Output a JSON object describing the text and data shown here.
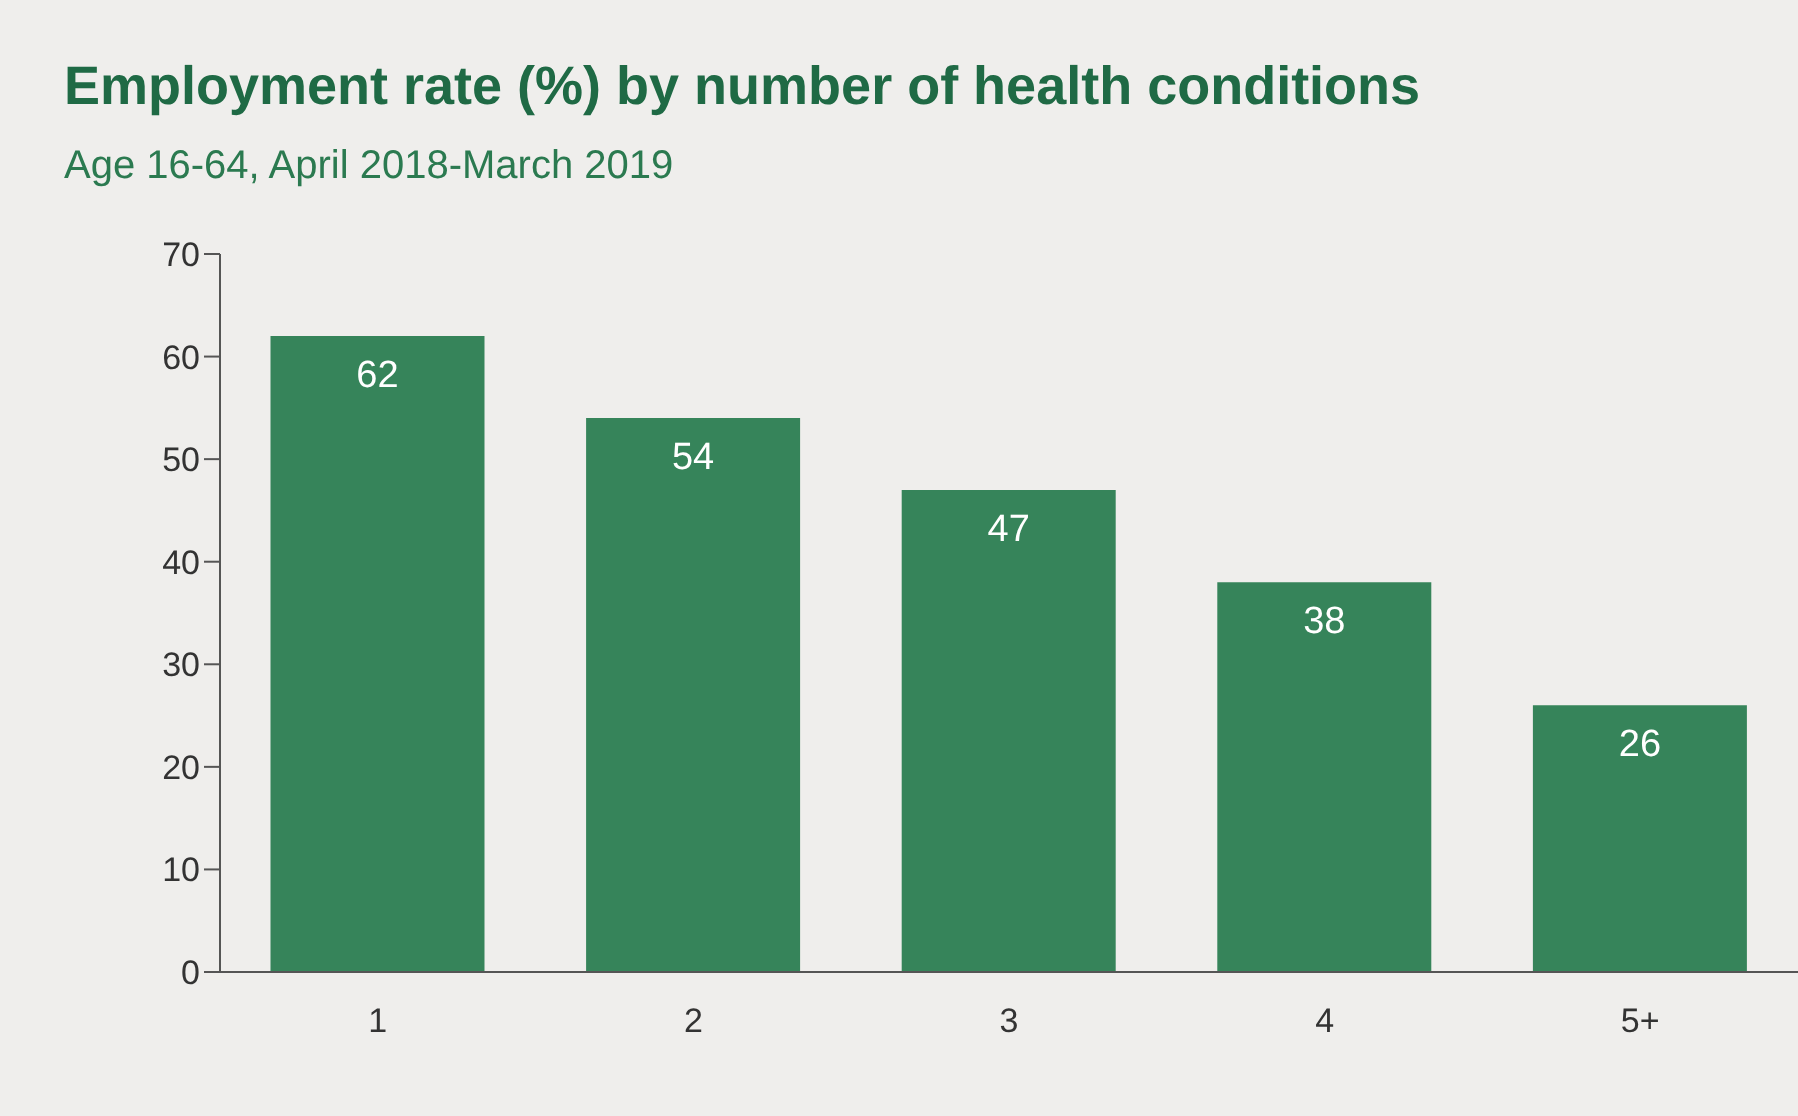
{
  "chart_data": {
    "type": "bar",
    "title": "Employment rate (%) by number of health conditions",
    "subtitle": "Age 16-64, April 2018-March 2019",
    "categories": [
      "1",
      "2",
      "3",
      "4",
      "5+"
    ],
    "values": [
      62,
      54,
      47,
      38,
      26
    ],
    "color": "#36845a",
    "ylim": [
      0,
      70
    ],
    "yticks": [
      0,
      10,
      20,
      30,
      40,
      50,
      60,
      70
    ],
    "grid": false,
    "data_labels": true
  }
}
